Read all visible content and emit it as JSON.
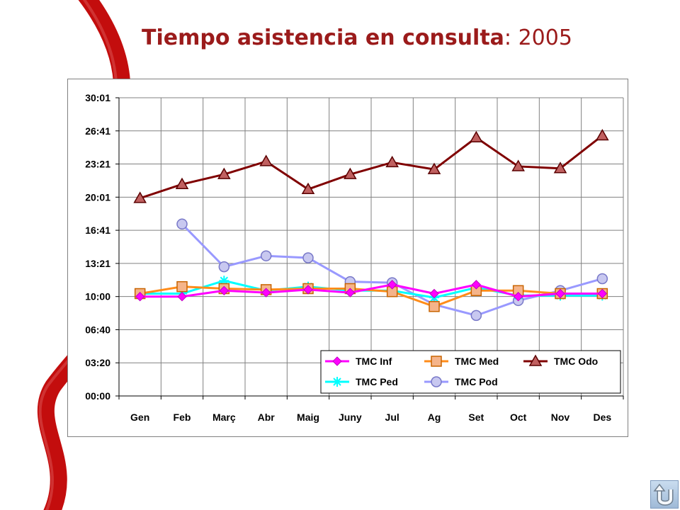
{
  "title": {
    "main": "Tiempo asistencia en consulta",
    "separator": ": ",
    "year": "2005"
  },
  "colors": {
    "ribbon": "#c00000",
    "title": "#9b1b1b"
  },
  "home_button": {
    "icon": "u-turn-arrow-icon"
  },
  "chart_data": {
    "type": "line",
    "title": "",
    "xlabel": "",
    "ylabel": "",
    "categories": [
      "Gen",
      "Feb",
      "Març",
      "Abr",
      "Maig",
      "Juny",
      "Jul",
      "Ag",
      "Set",
      "Oct",
      "Nov",
      "Des"
    ],
    "y_ticks": [
      "00:00",
      "03:20",
      "06:40",
      "10:00",
      "13:21",
      "16:41",
      "20:01",
      "23:21",
      "26:41",
      "30:01"
    ],
    "ylim": [
      0,
      30.01
    ],
    "y_unit": "minutes",
    "grid": true,
    "legend_position": "bottom-right",
    "series": [
      {
        "name": "TMC Inf",
        "color": "#ff00ff",
        "marker": "diamond",
        "values": [
          10.0,
          10.0,
          10.6,
          10.4,
          10.7,
          10.4,
          11.2,
          10.3,
          11.2,
          10.0,
          10.3,
          10.3
        ]
      },
      {
        "name": "TMC Med",
        "color": "#ff8c1a",
        "marker": "square",
        "values": [
          10.3,
          11.0,
          10.8,
          10.7,
          10.8,
          10.8,
          10.5,
          9.0,
          10.6,
          10.6,
          10.3,
          10.3
        ]
      },
      {
        "name": "TMC Odo",
        "color": "#800000",
        "marker": "triangle",
        "values": [
          19.9,
          21.3,
          22.3,
          23.6,
          20.8,
          22.3,
          23.5,
          22.8,
          26.0,
          23.1,
          22.9,
          26.2
        ]
      },
      {
        "name": "TMC Ped",
        "color": "#00ffff",
        "marker": "asterisk",
        "values": [
          10.3,
          10.3,
          11.6,
          10.6,
          11.0,
          10.6,
          10.6,
          9.9,
          10.9,
          10.1,
          10.1,
          10.1
        ]
      },
      {
        "name": "TMC Pod",
        "color": "#9999ff",
        "marker": "circle",
        "values": [
          null,
          17.3,
          13.0,
          14.1,
          13.9,
          11.5,
          11.4,
          9.2,
          8.1,
          9.6,
          10.6,
          11.8
        ]
      }
    ]
  }
}
